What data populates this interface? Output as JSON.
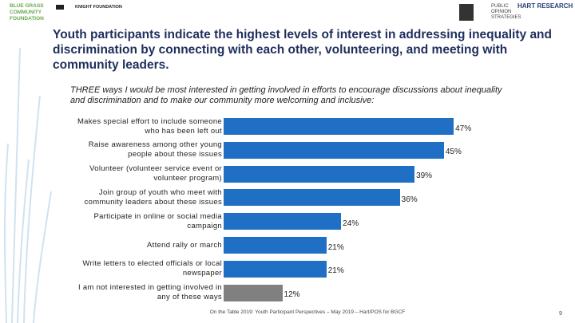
{
  "header": {
    "logo_left": "BLUE GRASS COMMUNITY FOUNDATION",
    "logo_knight": "KNIGHT FOUNDATION",
    "logo_pos": "PUBLIC OPINION STRATEGIES",
    "logo_hart": "HART RESEARCH"
  },
  "chart_data": {
    "type": "bar",
    "orientation": "horizontal",
    "title": "Youth participants indicate the highest levels of interest in addressing inequality and discrimination by connecting with each other, volunteering, and meeting with community leaders.",
    "subtitle": "THREE ways I would be most interested in getting involved in efforts to encourage discussions about inequality and discrimination and to make our community more welcoming and inclusive:",
    "categories": [
      "Makes special effort to include someone who has been left out",
      "Raise awareness among other young people about these issues",
      "Volunteer (volunteer service event or volunteer program)",
      "Join group of youth who meet with community leaders about these issues",
      "Participate in online or social media campaign",
      "Attend rally or march",
      "Write letters to elected officials or local newspaper",
      "I am not interested in getting involved in any of these ways"
    ],
    "values": [
      47,
      45,
      39,
      36,
      24,
      21,
      21,
      12
    ],
    "value_labels": [
      "47%",
      "45%",
      "39%",
      "36%",
      "24%",
      "21%",
      "21%",
      "12%"
    ],
    "colors": [
      "#1f6fc4",
      "#1f6fc4",
      "#1f6fc4",
      "#1f6fc4",
      "#1f6fc4",
      "#1f6fc4",
      "#1f6fc4",
      "#808080"
    ]
  },
  "footer": {
    "source": "On the Table 2019: Youth Participant Perspectives – May 2019 – Hart/POS for BGCF",
    "page": "9"
  }
}
